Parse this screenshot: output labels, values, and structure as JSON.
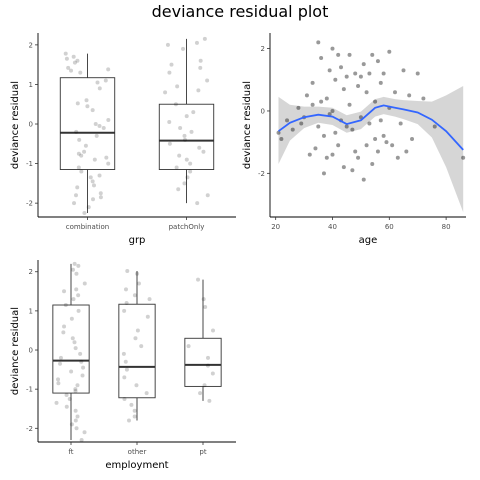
{
  "page_title": "deviance residual plot",
  "chart_data": [
    {
      "type": "box",
      "xlabel": "grp",
      "ylabel": "deviance residual",
      "categories": [
        "combination",
        "patchOnly"
      ],
      "yticks": [
        -2,
        -1,
        0,
        1,
        2
      ],
      "ylim": [
        -2.35,
        2.3
      ],
      "boxes": [
        {
          "category": "combination",
          "min": -2.25,
          "q1": -1.15,
          "median": -0.22,
          "q3": 1.17,
          "max": 1.78
        },
        {
          "category": "patchOnly",
          "min": -2.0,
          "q1": -1.15,
          "median": -0.42,
          "q3": 0.5,
          "max": 2.15
        }
      ],
      "points": [
        {
          "category": "combination",
          "y": [
            1.78,
            1.7,
            1.65,
            1.6,
            1.55,
            1.42,
            1.38,
            1.35,
            1.3,
            1.1,
            1.05,
            0.9,
            0.6,
            0.52,
            0.45,
            0.35,
            0.1,
            0.0,
            -0.05,
            -0.1,
            -0.2,
            -0.3,
            -0.4,
            -0.55,
            -0.7,
            -0.75,
            -0.8,
            -0.85,
            -0.9,
            -1.0,
            -1.1,
            -1.2,
            -1.3,
            -1.35,
            -1.45,
            -1.55,
            -1.6,
            -1.75,
            -1.8,
            -1.85,
            -1.9,
            -2.0,
            -2.1,
            -2.25
          ]
        },
        {
          "category": "patchOnly",
          "y": [
            2.15,
            2.05,
            2.0,
            1.9,
            1.6,
            1.5,
            1.42,
            1.3,
            1.1,
            0.95,
            0.85,
            0.8,
            0.5,
            0.3,
            0.2,
            0.05,
            -0.1,
            -0.2,
            -0.3,
            -0.4,
            -0.5,
            -0.6,
            -0.7,
            -0.8,
            -0.9,
            -1.0,
            -1.1,
            -1.2,
            -1.35,
            -1.5,
            -1.65,
            -1.8,
            -2.0
          ]
        }
      ]
    },
    {
      "type": "scatter",
      "xlabel": "age",
      "ylabel": "deviance residual",
      "xticks": [
        20,
        40,
        60,
        80
      ],
      "yticks": [
        -2,
        0,
        2
      ],
      "xlim": [
        18,
        87
      ],
      "ylim": [
        -3.4,
        2.5
      ],
      "smooth": {
        "color": "#3366ff",
        "x": [
          21,
          25,
          30,
          35,
          40,
          45,
          50,
          55,
          58,
          62,
          65,
          70,
          75,
          80,
          86
        ],
        "y": [
          -0.65,
          -0.38,
          -0.2,
          -0.12,
          -0.18,
          -0.42,
          -0.3,
          0.1,
          0.18,
          0.1,
          0.05,
          -0.05,
          -0.28,
          -0.65,
          -1.25
        ],
        "lower": [
          -1.7,
          -0.95,
          -0.55,
          -0.38,
          -0.45,
          -0.7,
          -0.58,
          -0.18,
          -0.1,
          -0.18,
          -0.26,
          -0.42,
          -0.85,
          -1.8,
          -3.25
        ],
        "upper": [
          0.45,
          0.2,
          0.14,
          0.14,
          0.1,
          -0.14,
          -0.02,
          0.38,
          0.45,
          0.38,
          0.35,
          0.32,
          0.3,
          0.5,
          0.8
        ]
      },
      "points": {
        "x": [
          21,
          22,
          24,
          26,
          28,
          29,
          30,
          31,
          32,
          33,
          33,
          34,
          35,
          35,
          36,
          36,
          37,
          37,
          38,
          38,
          39,
          39,
          40,
          40,
          40,
          41,
          41,
          42,
          42,
          43,
          43,
          44,
          44,
          45,
          45,
          46,
          46,
          47,
          47,
          48,
          48,
          49,
          49,
          50,
          50,
          51,
          51,
          52,
          52,
          53,
          53,
          54,
          54,
          55,
          55,
          56,
          56,
          57,
          57,
          58,
          58,
          59,
          60,
          60,
          61,
          62,
          63,
          64,
          65,
          66,
          67,
          68,
          70,
          72,
          76,
          86
        ],
        "y": [
          -0.7,
          -0.9,
          -0.3,
          -0.6,
          0.1,
          -0.4,
          -0.2,
          0.5,
          -1.4,
          0.2,
          0.9,
          -1.2,
          2.2,
          -0.5,
          0.3,
          1.7,
          -0.8,
          -2.0,
          -1.5,
          0.4,
          -0.1,
          1.3,
          2.0,
          -1.4,
          0.0,
          1.0,
          -0.7,
          1.8,
          -1.1,
          1.4,
          -0.3,
          0.7,
          -1.8,
          1.1,
          -0.5,
          1.8,
          0.2,
          -1.9,
          -0.6,
          1.2,
          -1.3,
          0.8,
          -1.5,
          1.1,
          -0.2,
          1.5,
          -2.2,
          0.6,
          -1.1,
          1.2,
          -0.4,
          1.8,
          -1.7,
          0.3,
          -0.9,
          1.6,
          -1.3,
          0.9,
          -0.3,
          1.2,
          -0.8,
          -1.0,
          1.9,
          0.1,
          -1.1,
          0.6,
          -1.5,
          -0.4,
          1.3,
          -1.3,
          0.5,
          -0.9,
          1.2,
          0.4,
          -0.5,
          -1.5
        ]
      }
    },
    {
      "type": "box",
      "xlabel": "employment",
      "ylabel": "deviance residual",
      "categories": [
        "ft",
        "other",
        "pt"
      ],
      "yticks": [
        -2,
        -1,
        0,
        1,
        2
      ],
      "ylim": [
        -2.35,
        2.3
      ],
      "boxes": [
        {
          "category": "ft",
          "min": -2.3,
          "q1": -1.1,
          "median": -0.27,
          "q3": 1.15,
          "max": 2.2
        },
        {
          "category": "other",
          "min": -1.8,
          "q1": -1.22,
          "median": -0.43,
          "q3": 1.17,
          "max": 2.02
        },
        {
          "category": "pt",
          "min": -1.3,
          "q1": -0.93,
          "median": -0.38,
          "q3": 0.3,
          "max": 1.8
        }
      ],
      "points": [
        {
          "category": "ft",
          "y": [
            2.2,
            2.15,
            2.05,
            1.95,
            1.7,
            1.55,
            1.5,
            1.4,
            1.3,
            1.15,
            1.0,
            0.8,
            0.6,
            0.45,
            0.3,
            0.2,
            0.05,
            -0.1,
            -0.2,
            -0.3,
            -0.35,
            -0.45,
            -0.55,
            -0.65,
            -0.75,
            -0.85,
            -0.9,
            -1.0,
            -1.05,
            -1.15,
            -1.25,
            -1.35,
            -1.45,
            -1.55,
            -1.7,
            -1.8,
            -1.9,
            -2.0,
            -2.1,
            -2.3
          ]
        },
        {
          "category": "other",
          "y": [
            2.02,
            1.95,
            1.7,
            1.55,
            1.4,
            1.3,
            1.2,
            1.0,
            0.85,
            0.5,
            0.3,
            0.1,
            -0.1,
            -0.3,
            -0.5,
            -0.7,
            -0.9,
            -1.1,
            -1.25,
            -1.4,
            -1.55,
            -1.7,
            -1.8
          ]
        },
        {
          "category": "pt",
          "y": [
            1.8,
            1.3,
            1.1,
            0.5,
            0.1,
            -0.2,
            -0.4,
            -0.6,
            -0.9,
            -1.1,
            -1.3
          ]
        }
      ]
    }
  ]
}
